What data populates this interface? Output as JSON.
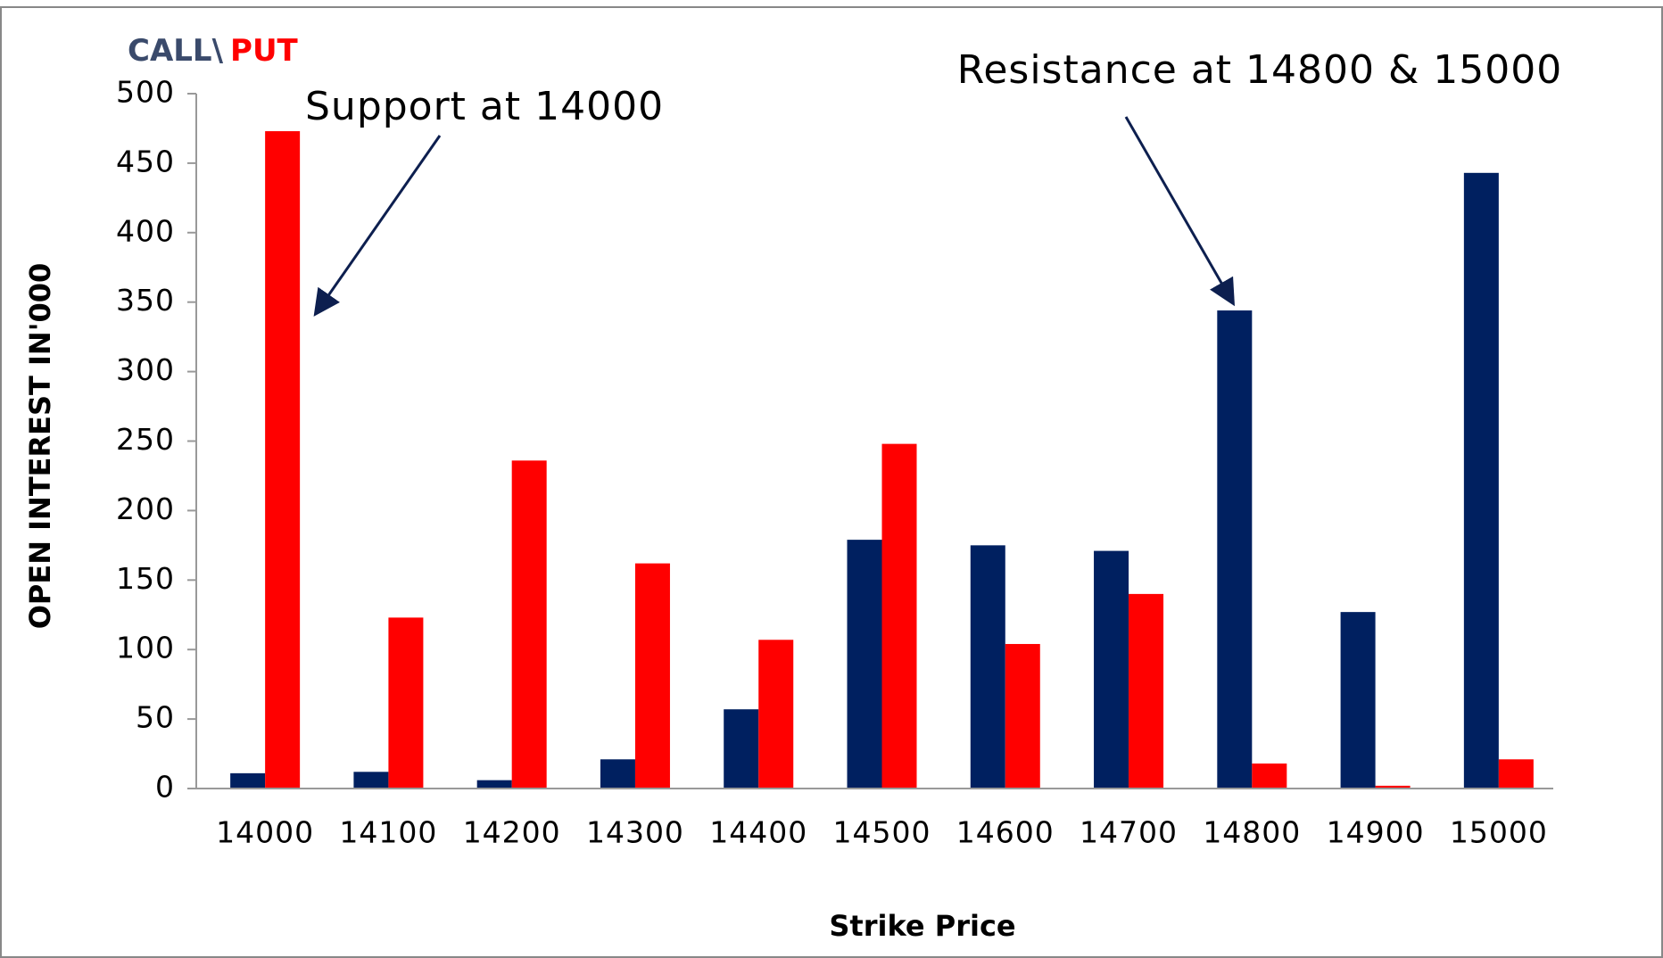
{
  "chart_data": {
    "type": "bar",
    "legend_title": {
      "call": "CALL",
      "separator": "\\",
      "put": "PUT"
    },
    "xlabel": "Strike Price",
    "ylabel": "OPEN INTEREST IN'000",
    "annotations": [
      "Support at 14000",
      "Resistance at 14800 & 15000"
    ],
    "categories": [
      "14000",
      "14100",
      "14200",
      "14300",
      "14400",
      "14500",
      "14600",
      "14700",
      "14800",
      "14900",
      "15000"
    ],
    "series": [
      {
        "name": "CALL",
        "color": "#002060",
        "values": [
          11,
          12,
          6,
          21,
          57,
          179,
          175,
          171,
          344,
          127,
          443
        ]
      },
      {
        "name": "PUT",
        "color": "#ff0000",
        "values": [
          473,
          123,
          236,
          162,
          107,
          248,
          104,
          140,
          18,
          2,
          21
        ]
      }
    ],
    "ylim": [
      0,
      500
    ],
    "yticks": [
      0,
      50,
      100,
      150,
      200,
      250,
      300,
      350,
      400,
      450,
      500
    ],
    "grid": false
  }
}
